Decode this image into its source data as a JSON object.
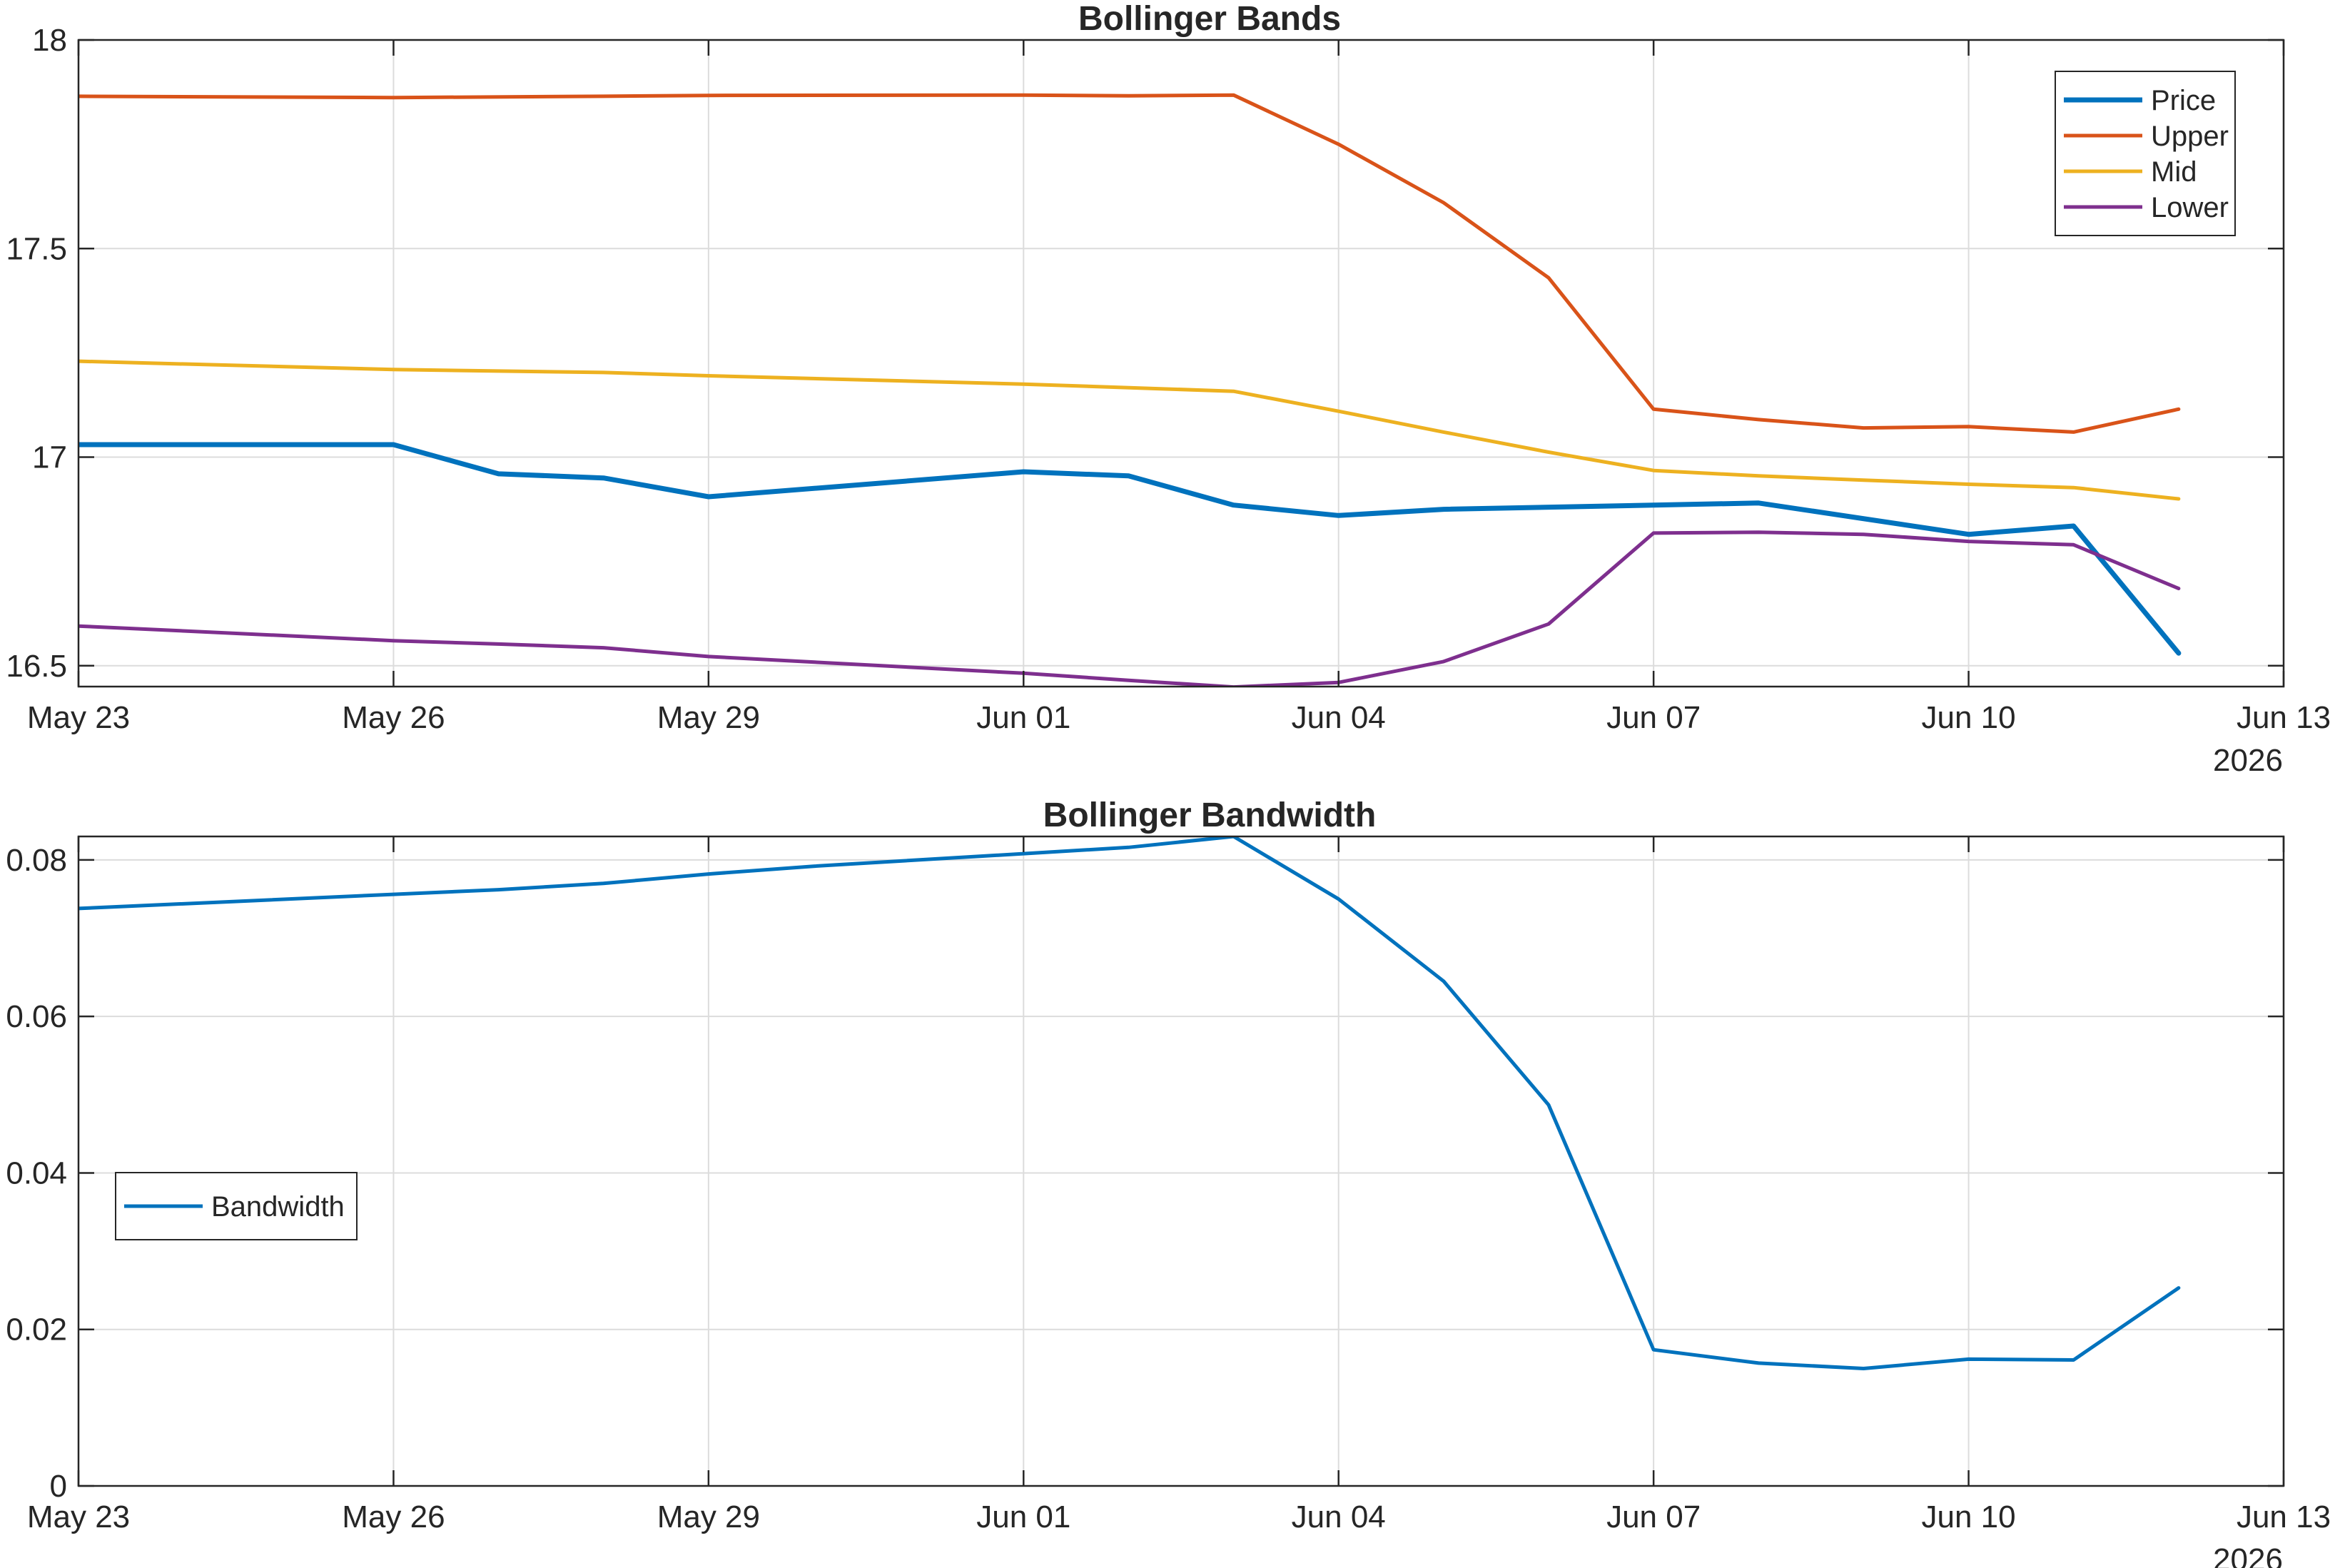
{
  "chart_data": [
    {
      "type": "line",
      "title": "Bollinger Bands",
      "xlabel": "",
      "ylabel": "",
      "x_domain": [
        "2026-05-23",
        "2026-06-13"
      ],
      "ylim": [
        16.45,
        18
      ],
      "x_ticks": [
        {
          "date": "2026-05-23",
          "label": "May 23"
        },
        {
          "date": "2026-05-26",
          "label": "May 26"
        },
        {
          "date": "2026-05-29",
          "label": "May 29"
        },
        {
          "date": "2026-06-01",
          "label": "Jun 01"
        },
        {
          "date": "2026-06-04",
          "label": "Jun 04"
        },
        {
          "date": "2026-06-07",
          "label": "Jun 07"
        },
        {
          "date": "2026-06-10",
          "label": "Jun 10"
        },
        {
          "date": "2026-06-13",
          "label": "Jun 13"
        }
      ],
      "x_year_label": "2026",
      "y_ticks": [
        {
          "value": 16.5,
          "label": "16.5"
        },
        {
          "value": 17,
          "label": "17"
        },
        {
          "value": 17.5,
          "label": "17.5"
        },
        {
          "value": 18,
          "label": "18"
        }
      ],
      "grid": true,
      "legend_position": "top-right",
      "series": [
        {
          "name": "Price",
          "color": "#0072BD",
          "width": 7,
          "points": [
            [
              "2026-05-23",
              17.03
            ],
            [
              "2026-05-26",
              17.03
            ],
            [
              "2026-05-27",
              16.96
            ],
            [
              "2026-05-28",
              16.95
            ],
            [
              "2026-05-29",
              16.905
            ],
            [
              "2026-06-01",
              16.965
            ],
            [
              "2026-06-02",
              16.955
            ],
            [
              "2026-06-03",
              16.885
            ],
            [
              "2026-06-04",
              16.86
            ],
            [
              "2026-06-05",
              16.875
            ],
            [
              "2026-06-08",
              16.89
            ],
            [
              "2026-06-10",
              16.815
            ],
            [
              "2026-06-11",
              16.835
            ],
            [
              "2026-06-12",
              16.53
            ]
          ]
        },
        {
          "name": "Upper",
          "color": "#D95319",
          "width": 5,
          "points": [
            [
              "2026-05-23",
              17.865
            ],
            [
              "2026-05-26",
              17.862
            ],
            [
              "2026-05-28",
              17.865
            ],
            [
              "2026-05-29",
              17.867
            ],
            [
              "2026-06-01",
              17.868
            ],
            [
              "2026-06-02",
              17.866
            ],
            [
              "2026-06-03",
              17.868
            ],
            [
              "2026-06-04",
              17.75
            ],
            [
              "2026-06-05",
              17.61
            ],
            [
              "2026-06-06",
              17.43
            ],
            [
              "2026-06-07",
              17.115
            ],
            [
              "2026-06-08",
              17.09
            ],
            [
              "2026-06-09",
              17.07
            ],
            [
              "2026-06-10",
              17.073
            ],
            [
              "2026-06-11",
              17.06
            ],
            [
              "2026-06-12",
              17.115
            ]
          ]
        },
        {
          "name": "Mid",
          "color": "#EDB120",
          "width": 5,
          "points": [
            [
              "2026-05-23",
              17.23
            ],
            [
              "2026-05-26",
              17.21
            ],
            [
              "2026-05-28",
              17.203
            ],
            [
              "2026-05-29",
              17.195
            ],
            [
              "2026-06-01",
              17.175
            ],
            [
              "2026-06-03",
              17.158
            ],
            [
              "2026-06-04",
              17.11
            ],
            [
              "2026-06-05",
              17.06
            ],
            [
              "2026-06-06",
              17.012
            ],
            [
              "2026-06-07",
              16.968
            ],
            [
              "2026-06-08",
              16.955
            ],
            [
              "2026-06-09",
              16.945
            ],
            [
              "2026-06-10",
              16.935
            ],
            [
              "2026-06-11",
              16.927
            ],
            [
              "2026-06-12",
              16.9
            ]
          ]
        },
        {
          "name": "Lower",
          "color": "#7E2F8E",
          "width": 5,
          "points": [
            [
              "2026-05-23",
              16.595
            ],
            [
              "2026-05-26",
              16.56
            ],
            [
              "2026-05-27",
              16.552
            ],
            [
              "2026-05-28",
              16.543
            ],
            [
              "2026-05-29",
              16.522
            ],
            [
              "2026-06-01",
              16.482
            ],
            [
              "2026-06-02",
              16.465
            ],
            [
              "2026-06-03",
              16.449
            ],
            [
              "2026-06-04",
              16.46
            ],
            [
              "2026-06-05",
              16.51
            ],
            [
              "2026-06-06",
              16.6
            ],
            [
              "2026-06-07",
              16.818
            ],
            [
              "2026-06-08",
              16.82
            ],
            [
              "2026-06-09",
              16.815
            ],
            [
              "2026-06-10",
              16.798
            ],
            [
              "2026-06-11",
              16.79
            ],
            [
              "2026-06-12",
              16.685
            ]
          ]
        }
      ]
    },
    {
      "type": "line",
      "title": "Bollinger Bandwidth",
      "xlabel": "",
      "ylabel": "",
      "x_domain": [
        "2026-05-23",
        "2026-06-13"
      ],
      "ylim": [
        0,
        0.083
      ],
      "x_ticks": [
        {
          "date": "2026-05-23",
          "label": "May 23"
        },
        {
          "date": "2026-05-26",
          "label": "May 26"
        },
        {
          "date": "2026-05-29",
          "label": "May 29"
        },
        {
          "date": "2026-06-01",
          "label": "Jun 01"
        },
        {
          "date": "2026-06-04",
          "label": "Jun 04"
        },
        {
          "date": "2026-06-07",
          "label": "Jun 07"
        },
        {
          "date": "2026-06-10",
          "label": "Jun 10"
        },
        {
          "date": "2026-06-13",
          "label": "Jun 13"
        }
      ],
      "x_year_label": "2026",
      "y_ticks": [
        {
          "value": 0,
          "label": "0"
        },
        {
          "value": 0.02,
          "label": "0.02"
        },
        {
          "value": 0.04,
          "label": "0.04"
        },
        {
          "value": 0.06,
          "label": "0.06"
        },
        {
          "value": 0.08,
          "label": "0.08"
        }
      ],
      "grid": true,
      "legend_position": "middle-left",
      "series": [
        {
          "name": "Bandwidth",
          "color": "#0072BD",
          "width": 5,
          "points": [
            [
              "2026-05-23",
              0.0738
            ],
            [
              "2026-05-26",
              0.0756
            ],
            [
              "2026-05-27",
              0.0762
            ],
            [
              "2026-05-28",
              0.077
            ],
            [
              "2026-05-29",
              0.0782
            ],
            [
              "2026-05-30",
              0.0792
            ],
            [
              "2026-06-01",
              0.0808
            ],
            [
              "2026-06-02",
              0.0816
            ],
            [
              "2026-06-03",
              0.083
            ],
            [
              "2026-06-04",
              0.075
            ],
            [
              "2026-06-05",
              0.0645
            ],
            [
              "2026-06-06",
              0.0487
            ],
            [
              "2026-06-07",
              0.0174
            ],
            [
              "2026-06-08",
              0.0157
            ],
            [
              "2026-06-09",
              0.015
            ],
            [
              "2026-06-10",
              0.0162
            ],
            [
              "2026-06-11",
              0.0161
            ],
            [
              "2026-06-12",
              0.0253
            ]
          ]
        }
      ]
    }
  ]
}
